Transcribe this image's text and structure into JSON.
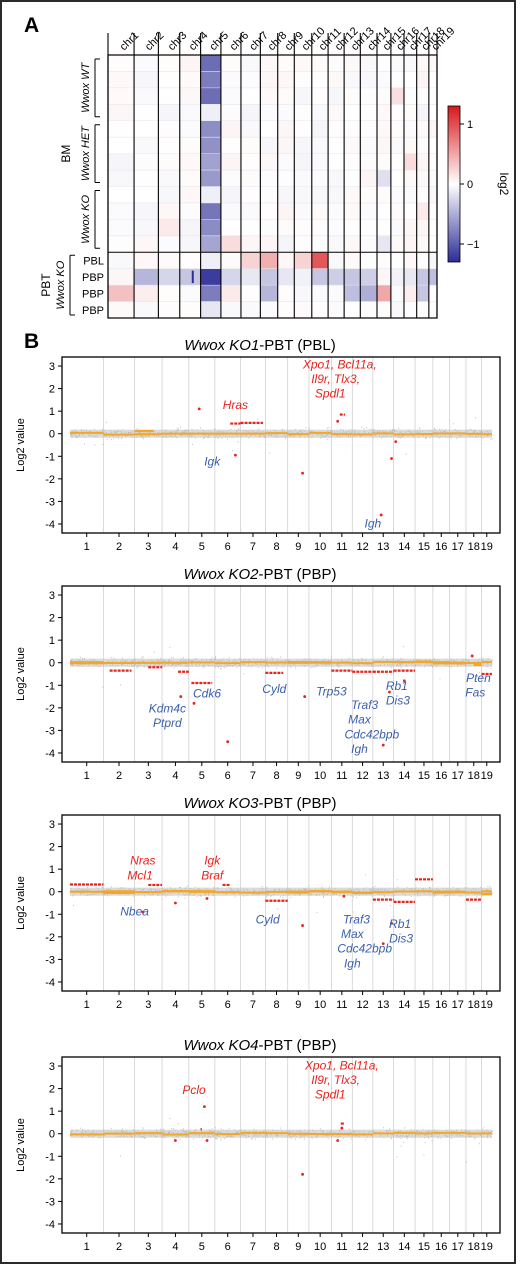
{
  "panel_a": {
    "label": "A",
    "chromosomes": [
      "chr1",
      "chr2",
      "chr3",
      "chr4",
      "chr5",
      "chr6",
      "chr7",
      "chr8",
      "chr9",
      "chr10",
      "chr11",
      "chr12",
      "chr13",
      "chr14",
      "chr15",
      "chr16",
      "chr17",
      "chr18",
      "chr19"
    ],
    "row_groups": [
      {
        "label": "Wwox WT",
        "rows": 4
      },
      {
        "label": "Wwox HET",
        "rows": 4
      },
      {
        "label": "Wwox KO",
        "rows": 4
      }
    ],
    "bm_label": "BM",
    "pbt_label": "PBT",
    "pbt_group_label": "Wwox KO",
    "pbt_rows": [
      "PBL",
      "PBP",
      "PBP",
      "PBP"
    ],
    "colorbar": {
      "title": "log2",
      "ticks": [
        "1",
        "0",
        "−1"
      ],
      "range": [
        -1.3,
        1.3
      ],
      "colors": {
        "high": "#d7191c",
        "mid": "#ffffff",
        "low": "#2c2c96"
      }
    }
  },
  "panel_b": {
    "label": "B",
    "ylabel": "Log2 value",
    "colors": {
      "gain": "#e8231c",
      "loss": "#3a5fae",
      "median": "#f5a623",
      "noise": "#bdbdbd"
    }
  },
  "chart_data": [
    {
      "type": "scatter",
      "title_italic": "Wwox KO1",
      "title_rest": "-PBT (PBL)",
      "ylim": [
        -4.4,
        3.4
      ],
      "yticks": [
        "3",
        "2",
        "1",
        "0",
        "-1",
        "-2",
        "-3",
        "-4"
      ],
      "xticks": [
        "1",
        "2",
        "3",
        "4",
        "5",
        "6",
        "7",
        "8",
        "9",
        "10",
        "11",
        "12",
        "13",
        "14",
        "15",
        "16",
        "17",
        "18",
        "19"
      ],
      "annotations": [
        {
          "text": "Hras",
          "type": "gain",
          "chr": 6.8,
          "y": 1.1
        },
        {
          "text": "Igk",
          "type": "loss",
          "chr": 5.9,
          "y": -1.4
        },
        {
          "text": "Xpo1, Bcl11a,",
          "type": "gain",
          "chr": 11.4,
          "y": 2.9
        },
        {
          "text": "Il9r, Tlx3,",
          "type": "gain",
          "chr": 11.2,
          "y": 2.25
        },
        {
          "text": "Spdl1",
          "type": "gain",
          "chr": 10.95,
          "y": 1.6
        },
        {
          "text": "Igh",
          "type": "loss",
          "chr": 13.0,
          "y": -4.15
        }
      ]
    },
    {
      "type": "scatter",
      "title_italic": "Wwox KO2",
      "title_rest": "-PBT (PBP)",
      "ylim": [
        -4.4,
        3.4
      ],
      "yticks": [
        "3",
        "2",
        "1",
        "0",
        "-1",
        "-2",
        "-3",
        "-4"
      ],
      "xticks": [
        "1",
        "2",
        "3",
        "4",
        "5",
        "6",
        "7",
        "8",
        "9",
        "10",
        "11",
        "12",
        "13",
        "14",
        "15",
        "16",
        "17",
        "18",
        "19"
      ],
      "annotations": [
        {
          "text": "Kdm4c",
          "type": "loss",
          "chr": 4.2,
          "y": -2.2
        },
        {
          "text": "Ptprd",
          "type": "loss",
          "chr": 4.2,
          "y": -2.85
        },
        {
          "text": "Cdk6",
          "type": "loss",
          "chr": 5.7,
          "y": -1.55
        },
        {
          "text": "Cyld",
          "type": "loss",
          "chr": 8.4,
          "y": -1.35
        },
        {
          "text": "Trp53",
          "type": "loss",
          "chr": 11.0,
          "y": -1.45
        },
        {
          "text": "Traf3",
          "type": "loss",
          "chr": 12.6,
          "y": -2.05
        },
        {
          "text": "Max",
          "type": "loss",
          "chr": 12.35,
          "y": -2.7
        },
        {
          "text": "Cdc42bpb",
          "type": "loss",
          "chr": 12.95,
          "y": -3.35
        },
        {
          "text": "Igh",
          "type": "loss",
          "chr": 12.35,
          "y": -4.0
        },
        {
          "text": "Rb1",
          "type": "loss",
          "chr": 14.15,
          "y": -1.2
        },
        {
          "text": "Dis3",
          "type": "loss",
          "chr": 14.2,
          "y": -1.85
        },
        {
          "text": "Pten",
          "type": "loss",
          "chr": 18.8,
          "y": -0.85
        },
        {
          "text": "Fas",
          "type": "loss",
          "chr": 18.6,
          "y": -1.5
        }
      ]
    },
    {
      "type": "scatter",
      "title_italic": "Wwox KO3",
      "title_rest": "-PBT (PBP)",
      "ylim": [
        -4.4,
        3.4
      ],
      "yticks": [
        "3",
        "2",
        "1",
        "0",
        "-1",
        "-2",
        "-3",
        "-4"
      ],
      "xticks": [
        "1",
        "2",
        "3",
        "4",
        "5",
        "6",
        "7",
        "8",
        "9",
        "10",
        "11",
        "12",
        "13",
        "14",
        "15",
        "16",
        "17",
        "18",
        "19"
      ],
      "annotations": [
        {
          "text": "Nras",
          "type": "gain",
          "chr": 3.3,
          "y": 1.2
        },
        {
          "text": "Mcl1",
          "type": "gain",
          "chr": 3.2,
          "y": 0.55
        },
        {
          "text": "Igk",
          "type": "gain",
          "chr": 5.9,
          "y": 1.2
        },
        {
          "text": "Braf",
          "type": "gain",
          "chr": 5.9,
          "y": 0.55
        },
        {
          "text": "Nbea",
          "type": "loss",
          "chr": 3.0,
          "y": -1.05
        },
        {
          "text": "Cyld",
          "type": "loss",
          "chr": 8.1,
          "y": -1.4
        },
        {
          "text": "Traf3",
          "type": "loss",
          "chr": 12.2,
          "y": -1.4
        },
        {
          "text": "Max",
          "type": "loss",
          "chr": 12.0,
          "y": -2.05
        },
        {
          "text": "Cdc42bpb",
          "type": "loss",
          "chr": 12.6,
          "y": -2.7
        },
        {
          "text": "Igh",
          "type": "loss",
          "chr": 12.0,
          "y": -3.35
        },
        {
          "text": "Rb1",
          "type": "loss",
          "chr": 14.3,
          "y": -1.6
        },
        {
          "text": "Dis3",
          "type": "loss",
          "chr": 14.35,
          "y": -2.25
        }
      ]
    },
    {
      "type": "scatter",
      "title_italic": "Wwox KO4",
      "title_rest": "-PBT (PBP)",
      "ylim": [
        -4.4,
        3.4
      ],
      "yticks": [
        "3",
        "2",
        "1",
        "0",
        "-1",
        "-2",
        "-3",
        "-4"
      ],
      "xticks": [
        "1",
        "2",
        "3",
        "4",
        "5",
        "6",
        "7",
        "8",
        "9",
        "10",
        "11",
        "12",
        "13",
        "14",
        "15",
        "16",
        "17",
        "18",
        "19"
      ],
      "annotations": [
        {
          "text": "Pclo",
          "type": "gain",
          "chr": 5.2,
          "y": 1.75
        },
        {
          "text": "Xpo1, Bcl11a,",
          "type": "gain",
          "chr": 11.5,
          "y": 2.85
        },
        {
          "text": "Il9r, Tlx3,",
          "type": "gain",
          "chr": 11.2,
          "y": 2.2
        },
        {
          "text": "Spdl1",
          "type": "gain",
          "chr": 10.95,
          "y": 1.55
        }
      ]
    }
  ]
}
